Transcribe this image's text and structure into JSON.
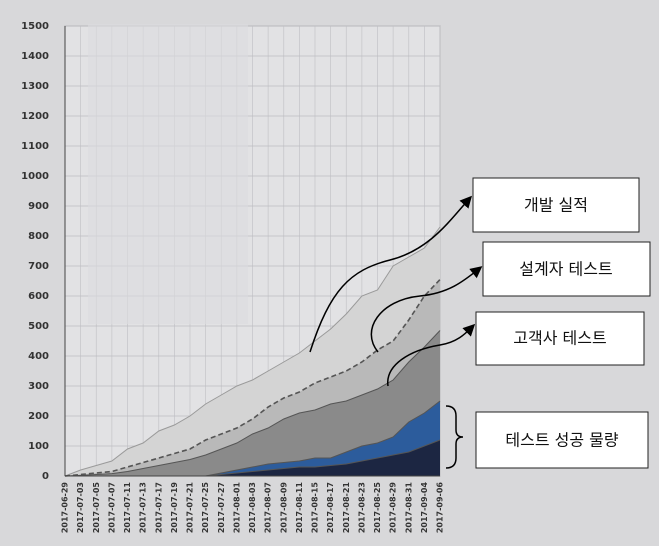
{
  "chart_data": {
    "type": "area",
    "categories": [
      "2017-06-29",
      "2017-07-03",
      "2017-07-05",
      "2017-07-07",
      "2017-07-11",
      "2017-07-13",
      "2017-07-17",
      "2017-07-19",
      "2017-07-21",
      "2017-07-25",
      "2017-07-27",
      "2017-08-01",
      "2017-08-03",
      "2017-08-07",
      "2017-08-09",
      "2017-08-11",
      "2017-08-15",
      "2017-08-17",
      "2017-08-21",
      "2017-08-23",
      "2017-08-25",
      "2017-08-29",
      "2017-08-31",
      "2017-09-04",
      "2017-09-06"
    ],
    "ylim": [
      0,
      1500
    ],
    "yticks": [
      0,
      100,
      200,
      300,
      400,
      500,
      600,
      700,
      800,
      900,
      1000,
      1100,
      1200,
      1300,
      1400,
      1500
    ],
    "grid": true,
    "series": [
      {
        "name": "개발 실적",
        "color": "#d4d4d4",
        "values": [
          0,
          20,
          35,
          50,
          90,
          110,
          150,
          170,
          200,
          240,
          270,
          300,
          320,
          350,
          380,
          410,
          450,
          490,
          540,
          600,
          620,
          700,
          730,
          760,
          830
        ]
      },
      {
        "name": "설계자 테스트",
        "color": "#b9b9b9",
        "values": [
          0,
          5,
          10,
          15,
          30,
          45,
          60,
          75,
          90,
          120,
          140,
          160,
          190,
          230,
          260,
          280,
          310,
          330,
          350,
          380,
          420,
          450,
          520,
          600,
          655
        ]
      },
      {
        "name": "고객사 테스트",
        "color": "#8a8a8a",
        "values": [
          0,
          2,
          5,
          8,
          15,
          25,
          35,
          45,
          55,
          70,
          90,
          110,
          140,
          160,
          190,
          210,
          220,
          240,
          250,
          270,
          290,
          320,
          380,
          430,
          485
        ]
      },
      {
        "name": "테스트 성공 물량",
        "color": "#2c5c9c",
        "values": [
          0,
          0,
          0,
          0,
          0,
          0,
          0,
          0,
          0,
          0,
          10,
          20,
          30,
          40,
          45,
          50,
          60,
          60,
          80,
          100,
          110,
          130,
          180,
          210,
          250
        ]
      },
      {
        "color": "#1c2642",
        "values": [
          0,
          0,
          0,
          0,
          0,
          0,
          0,
          0,
          0,
          0,
          5,
          10,
          15,
          20,
          25,
          30,
          30,
          35,
          40,
          50,
          60,
          70,
          80,
          100,
          120
        ]
      }
    ]
  }
}
